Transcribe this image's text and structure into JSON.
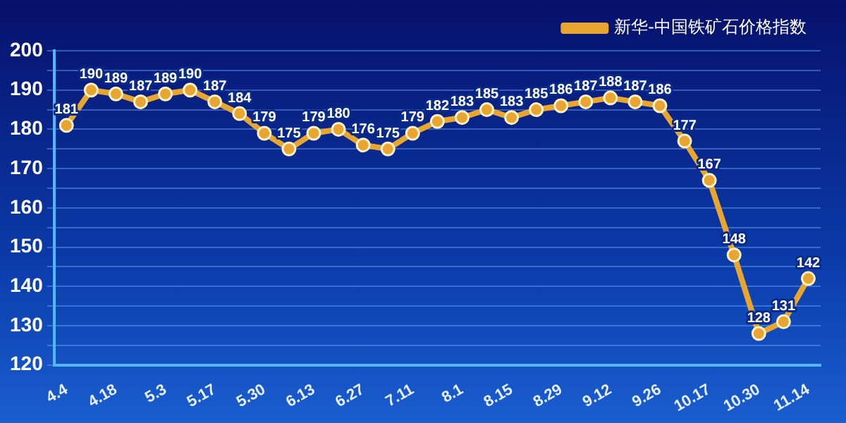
{
  "chart_data": {
    "type": "line",
    "categories": [
      "4.4",
      null,
      "4.18",
      null,
      "5.3",
      null,
      "5.17",
      null,
      "5.30",
      null,
      "6.13",
      null,
      "6.27",
      null,
      "7.11",
      null,
      "8.1",
      null,
      "8.15",
      null,
      "8.29",
      null,
      "9.12",
      null,
      "9.26",
      null,
      "10.17",
      null,
      "10.30",
      null,
      "11.14"
    ],
    "series": [
      {
        "name": "新华-中国铁矿石价格指数",
        "color": "#e8a630",
        "values": [
          181,
          190,
          189,
          187,
          189,
          190,
          187,
          184,
          179,
          175,
          179,
          180,
          176,
          175,
          179,
          182,
          183,
          185,
          183,
          185,
          186,
          187,
          188,
          187,
          186,
          177,
          167,
          148,
          128,
          131,
          142
        ]
      }
    ],
    "ylim": [
      120,
      200
    ],
    "yticks": [
      120,
      {
        "value": 125,
        "label": null
      },
      130,
      {
        "value": 135,
        "label": null
      },
      140,
      {
        "value": 145,
        "label": null
      },
      150,
      {
        "value": 155,
        "label": null
      },
      160,
      {
        "value": 165,
        "label": null
      },
      170,
      {
        "value": 175,
        "label": null
      },
      180,
      {
        "value": 185,
        "label": null
      },
      190,
      {
        "value": 195,
        "label": null
      },
      200
    ],
    "grid": "y",
    "legend": "top right",
    "marker": "circle",
    "line_style": "solid",
    "data_labels": true
  }
}
